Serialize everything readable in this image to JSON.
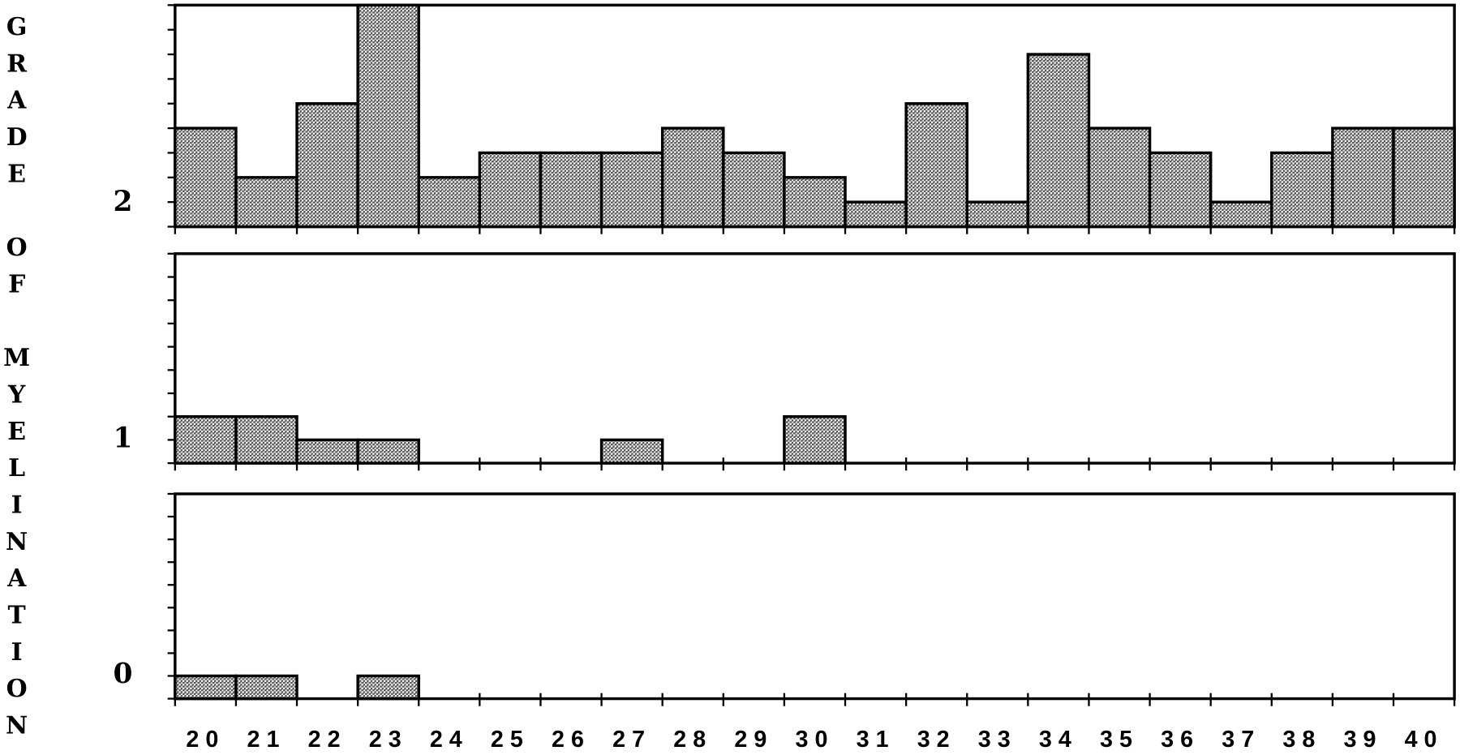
{
  "chart_data": {
    "type": "bar",
    "ylabel": "GRADE OF MYELINATION",
    "categories": [
      "20",
      "21",
      "22",
      "23",
      "24",
      "25",
      "26",
      "27",
      "28",
      "29",
      "30",
      "31",
      "32",
      "33",
      "34",
      "35",
      "36",
      "37",
      "38",
      "39",
      "40"
    ],
    "series": [
      {
        "name": "2",
        "values": [
          4,
          2,
          5,
          9,
          2,
          3,
          3,
          3,
          4,
          3,
          2,
          1,
          5,
          1,
          7,
          4,
          3,
          1,
          3,
          4,
          4
        ]
      },
      {
        "name": "1",
        "values": [
          2,
          2,
          1,
          1,
          0,
          0,
          0,
          1,
          0,
          0,
          2,
          0,
          0,
          0,
          0,
          0,
          0,
          0,
          0,
          0,
          0
        ]
      },
      {
        "name": "0",
        "values": [
          1,
          1,
          0,
          1,
          0,
          0,
          0,
          0,
          0,
          0,
          0,
          0,
          0,
          0,
          0,
          0,
          0,
          0,
          0,
          0,
          0
        ]
      }
    ],
    "color": "#555555",
    "ylim": [
      0,
      9
    ],
    "yticks": [
      0,
      1,
      2,
      3,
      4,
      5,
      6,
      7,
      8,
      9
    ]
  }
}
